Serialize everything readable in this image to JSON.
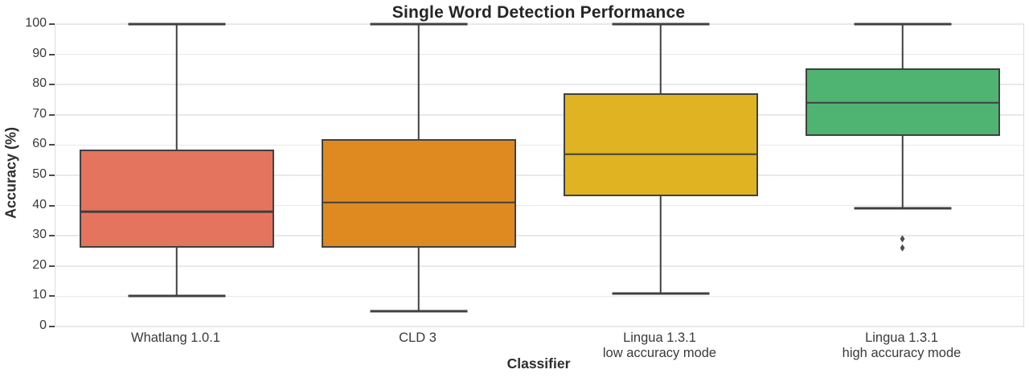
{
  "colors": {
    "background": "#ffffff",
    "line": "#404040",
    "grid": "#e9e9e9",
    "spine": "#dcdcdc",
    "text_dark": "#262626",
    "text_tick": "#3a3a3a",
    "box_coral": "#e4745d",
    "box_orange": "#df8a21",
    "box_gold": "#dfb321",
    "box_green": "#4fb471",
    "outlier": "#4d4d4d"
  },
  "chart_data": {
    "type": "box",
    "title": "Single Word Detection Performance",
    "xlabel": "Classifier",
    "ylabel": "Accuracy (%)",
    "ylim": [
      0,
      100
    ],
    "yticks": [
      0,
      10,
      20,
      30,
      40,
      50,
      60,
      70,
      80,
      90,
      100
    ],
    "grid": "horizontal",
    "legend": "none",
    "categories": [
      "Whatlang 1.0.1",
      "CLD 3",
      "Lingua 1.3.1\nlow accuracy mode",
      "Lingua 1.3.1\nhigh accuracy mode"
    ],
    "series": [
      {
        "name": "Whatlang 1.0.1",
        "color": "#e4745d",
        "whisker_low": 10,
        "q1": 26,
        "median": 38,
        "q3": 58.5,
        "whisker_high": 100,
        "outliers": []
      },
      {
        "name": "CLD 3",
        "color": "#df8a21",
        "whisker_low": 5,
        "q1": 26,
        "median": 41,
        "q3": 62,
        "whisker_high": 100,
        "outliers": []
      },
      {
        "name": "Lingua 1.3.1 low accuracy mode",
        "color": "#dfb321",
        "whisker_low": 11,
        "q1": 43,
        "median": 57,
        "q3": 77,
        "whisker_high": 100,
        "outliers": []
      },
      {
        "name": "Lingua 1.3.1 high accuracy mode",
        "color": "#4fb471",
        "whisker_low": 39,
        "q1": 63,
        "median": 74,
        "q3": 85.5,
        "whisker_high": 100,
        "outliers": [
          29,
          26
        ]
      }
    ]
  }
}
